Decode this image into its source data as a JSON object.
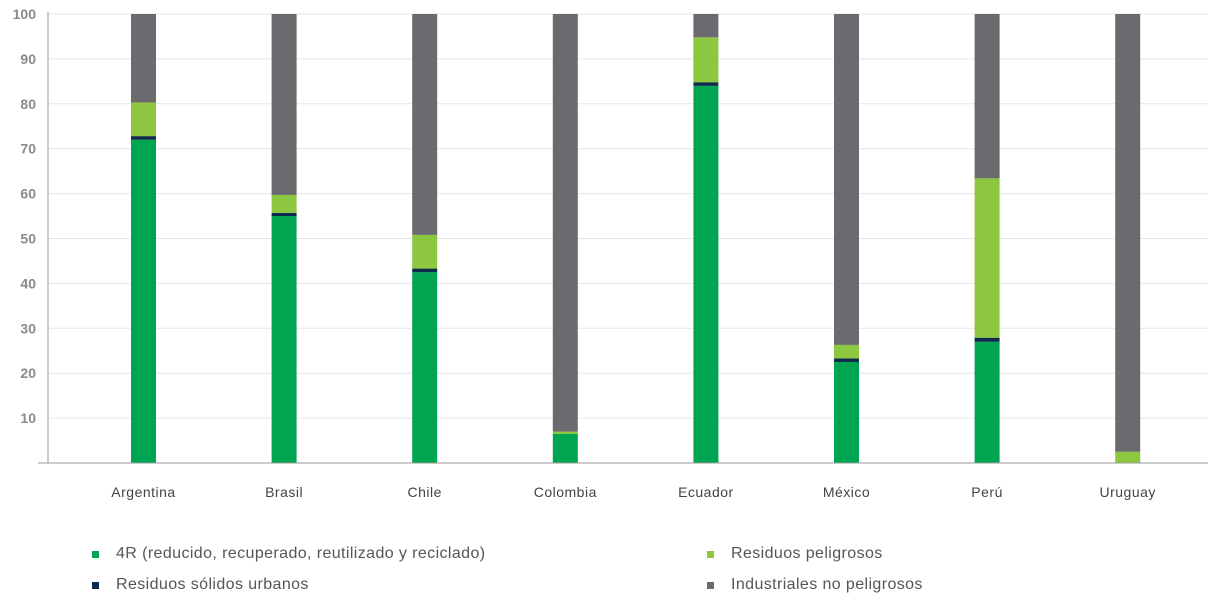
{
  "chart_data": {
    "type": "bar",
    "stacked": true,
    "categories": [
      "Argentina",
      "Brasil",
      "Chile",
      "Colombia",
      "Ecuador",
      "México",
      "Perú",
      "Uruguay"
    ],
    "series": [
      {
        "name": "4R (reducido, recuperado, reutilizado y reciclado)",
        "color": "#00a551",
        "values": [
          72,
          55,
          42.5,
          6.5,
          84,
          22.5,
          27,
          0
        ]
      },
      {
        "name": "Residuos sólidos urbanos",
        "color": "#0d2a4c",
        "values": [
          0.8,
          0.7,
          0.8,
          0,
          0.8,
          0.8,
          0.9,
          0
        ]
      },
      {
        "name": "Residuos peligrosos",
        "color": "#8dc63f",
        "values": [
          7.5,
          4,
          7.5,
          0.5,
          10,
          3,
          35.5,
          2.5
        ]
      },
      {
        "name": "Industriales no peligrosos",
        "color": "#6b6b6f",
        "values": [
          19.7,
          40.3,
          49.2,
          93,
          5.2,
          73.7,
          36.6,
          97.5
        ]
      }
    ],
    "ylim": [
      0,
      100
    ],
    "yticks": [
      10,
      20,
      30,
      40,
      50,
      60,
      70,
      80,
      90,
      100
    ],
    "grid": true,
    "legend_placement": "bottom"
  }
}
